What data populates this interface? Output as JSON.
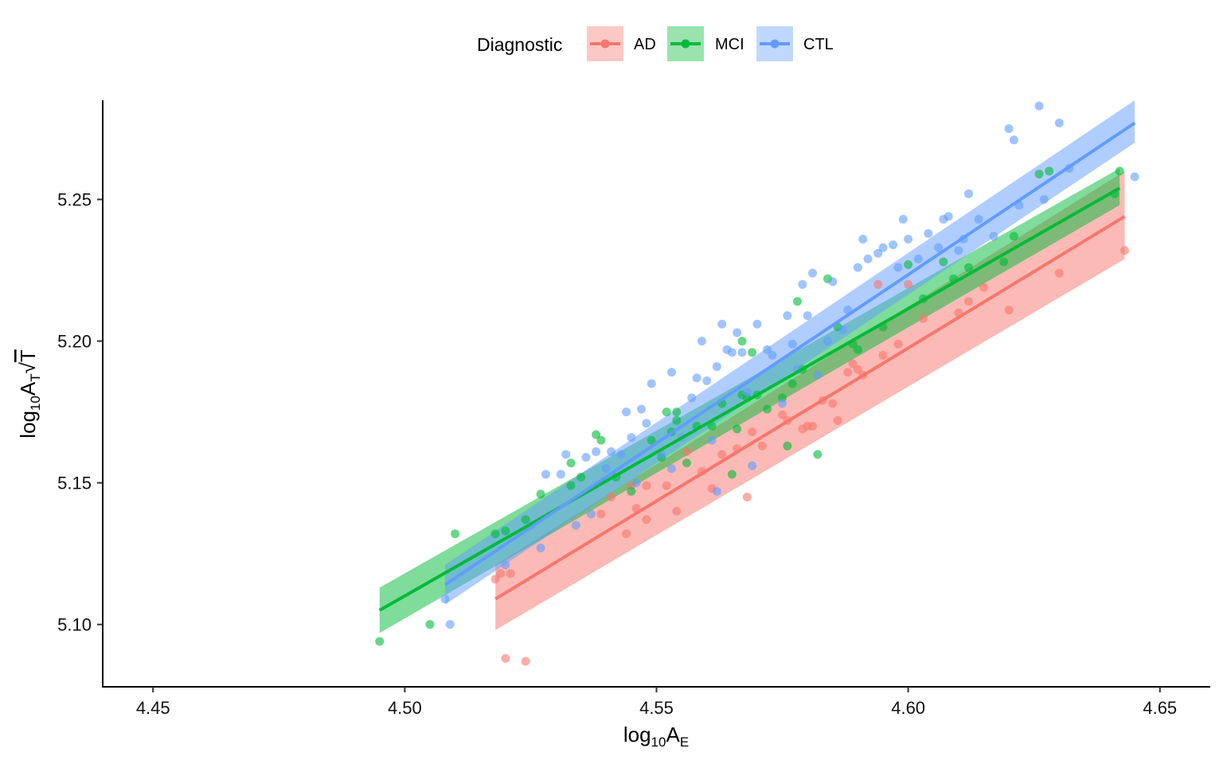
{
  "chart_data": {
    "type": "scatter",
    "title": "",
    "xlabel": {
      "base": "log",
      "sub": "10",
      "main": "A",
      "main_sub": "E"
    },
    "ylabel": {
      "base": "log",
      "sub": "10",
      "main": "A",
      "main_sub": "T",
      "root": "√",
      "root_arg": "T"
    },
    "xlim": [
      4.44,
      4.66
    ],
    "ylim": [
      5.078,
      5.285
    ],
    "x_ticks": [
      4.45,
      4.5,
      4.55,
      4.6,
      4.65
    ],
    "x_tick_labels": [
      "4.45",
      "4.50",
      "4.55",
      "4.60",
      "4.65"
    ],
    "y_ticks": [
      5.1,
      5.15,
      5.2,
      5.25
    ],
    "y_tick_labels": [
      "5.10",
      "5.15",
      "5.20",
      "5.25"
    ],
    "grid": false,
    "legend": {
      "title": "Diagnostic",
      "position": "top"
    },
    "series": [
      {
        "name": "AD",
        "color": "#F8766D",
        "fill": "#F8766D",
        "fit": {
          "x0": 4.518,
          "y0": 5.109,
          "x1": 4.643,
          "y1": 5.244
        },
        "band": {
          "lower0": 5.098,
          "upper0": 5.121,
          "lower1": 5.229,
          "upper1": 5.26
        },
        "points": [
          [
            4.518,
            5.116
          ],
          [
            4.519,
            5.118
          ],
          [
            4.521,
            5.118
          ],
          [
            4.52,
            5.088
          ],
          [
            4.524,
            5.087
          ],
          [
            4.539,
            5.139
          ],
          [
            4.541,
            5.145
          ],
          [
            4.544,
            5.132
          ],
          [
            4.545,
            5.149
          ],
          [
            4.546,
            5.141
          ],
          [
            4.548,
            5.137
          ],
          [
            4.548,
            5.149
          ],
          [
            4.552,
            5.149
          ],
          [
            4.554,
            5.14
          ],
          [
            4.556,
            5.161
          ],
          [
            4.559,
            5.154
          ],
          [
            4.561,
            5.148
          ],
          [
            4.563,
            5.16
          ],
          [
            4.566,
            5.162
          ],
          [
            4.568,
            5.145
          ],
          [
            4.569,
            5.168
          ],
          [
            4.571,
            5.163
          ],
          [
            4.575,
            5.174
          ],
          [
            4.576,
            5.172
          ],
          [
            4.579,
            5.169
          ],
          [
            4.58,
            5.17
          ],
          [
            4.581,
            5.17
          ],
          [
            4.583,
            5.179
          ],
          [
            4.585,
            5.178
          ],
          [
            4.586,
            5.172
          ],
          [
            4.588,
            5.189
          ],
          [
            4.589,
            5.192
          ],
          [
            4.59,
            5.19
          ],
          [
            4.591,
            5.188
          ],
          [
            4.594,
            5.22
          ],
          [
            4.595,
            5.195
          ],
          [
            4.598,
            5.199
          ],
          [
            4.6,
            5.22
          ],
          [
            4.603,
            5.208
          ],
          [
            4.61,
            5.21
          ],
          [
            4.612,
            5.214
          ],
          [
            4.615,
            5.219
          ],
          [
            4.62,
            5.211
          ],
          [
            4.63,
            5.224
          ],
          [
            4.643,
            5.232
          ]
        ]
      },
      {
        "name": "MCI",
        "color": "#00BA38",
        "fill": "#00BA38",
        "fit": {
          "x0": 4.495,
          "y0": 5.105,
          "x1": 4.642,
          "y1": 5.254
        },
        "band": {
          "lower0": 5.097,
          "upper0": 5.113,
          "lower1": 5.248,
          "upper1": 5.261
        },
        "points": [
          [
            4.495,
            5.094
          ],
          [
            4.505,
            5.1
          ],
          [
            4.51,
            5.132
          ],
          [
            4.518,
            5.132
          ],
          [
            4.52,
            5.133
          ],
          [
            4.524,
            5.137
          ],
          [
            4.527,
            5.146
          ],
          [
            4.533,
            5.149
          ],
          [
            4.533,
            5.157
          ],
          [
            4.535,
            5.152
          ],
          [
            4.538,
            5.167
          ],
          [
            4.539,
            5.165
          ],
          [
            4.542,
            5.152
          ],
          [
            4.545,
            5.147
          ],
          [
            4.549,
            5.165
          ],
          [
            4.551,
            5.159
          ],
          [
            4.552,
            5.175
          ],
          [
            4.553,
            5.168
          ],
          [
            4.554,
            5.172
          ],
          [
            4.554,
            5.175
          ],
          [
            4.556,
            5.157
          ],
          [
            4.558,
            5.17
          ],
          [
            4.561,
            5.17
          ],
          [
            4.563,
            5.178
          ],
          [
            4.565,
            5.153
          ],
          [
            4.566,
            5.169
          ],
          [
            4.567,
            5.2
          ],
          [
            4.567,
            5.181
          ],
          [
            4.568,
            5.18
          ],
          [
            4.569,
            5.196
          ],
          [
            4.57,
            5.181
          ],
          [
            4.572,
            5.176
          ],
          [
            4.575,
            5.18
          ],
          [
            4.576,
            5.163
          ],
          [
            4.577,
            5.185
          ],
          [
            4.578,
            5.214
          ],
          [
            4.579,
            5.19
          ],
          [
            4.582,
            5.16
          ],
          [
            4.584,
            5.222
          ],
          [
            4.586,
            5.205
          ],
          [
            4.589,
            5.199
          ],
          [
            4.59,
            5.197
          ],
          [
            4.595,
            5.205
          ],
          [
            4.6,
            5.227
          ],
          [
            4.603,
            5.215
          ],
          [
            4.607,
            5.228
          ],
          [
            4.609,
            5.222
          ],
          [
            4.612,
            5.226
          ],
          [
            4.619,
            5.228
          ],
          [
            4.621,
            5.237
          ],
          [
            4.626,
            5.259
          ],
          [
            4.628,
            5.26
          ],
          [
            4.641,
            5.252
          ],
          [
            4.642,
            5.26
          ]
        ]
      },
      {
        "name": "CTL",
        "color": "#619CFF",
        "fill": "#619CFF",
        "fit": {
          "x0": 4.508,
          "y0": 5.114,
          "x1": 4.645,
          "y1": 5.277
        },
        "band": {
          "lower0": 5.107,
          "upper0": 5.121,
          "lower1": 5.27,
          "upper1": 5.285
        },
        "points": [
          [
            4.508,
            5.109
          ],
          [
            4.509,
            5.1
          ],
          [
            4.52,
            5.121
          ],
          [
            4.525,
            5.135
          ],
          [
            4.527,
            5.127
          ],
          [
            4.528,
            5.153
          ],
          [
            4.531,
            5.153
          ],
          [
            4.532,
            5.16
          ],
          [
            4.534,
            5.135
          ],
          [
            4.536,
            5.159
          ],
          [
            4.538,
            5.161
          ],
          [
            4.537,
            5.139
          ],
          [
            4.54,
            5.155
          ],
          [
            4.541,
            5.161
          ],
          [
            4.543,
            5.16
          ],
          [
            4.544,
            5.175
          ],
          [
            4.545,
            5.166
          ],
          [
            4.546,
            5.15
          ],
          [
            4.547,
            5.176
          ],
          [
            4.548,
            5.171
          ],
          [
            4.549,
            5.185
          ],
          [
            4.551,
            5.16
          ],
          [
            4.553,
            5.155
          ],
          [
            4.553,
            5.189
          ],
          [
            4.555,
            5.166
          ],
          [
            4.557,
            5.18
          ],
          [
            4.558,
            5.187
          ],
          [
            4.559,
            5.2
          ],
          [
            4.56,
            5.186
          ],
          [
            4.561,
            5.165
          ],
          [
            4.562,
            5.191
          ],
          [
            4.562,
            5.147
          ],
          [
            4.563,
            5.206
          ],
          [
            4.564,
            5.197
          ],
          [
            4.565,
            5.196
          ],
          [
            4.566,
            5.203
          ],
          [
            4.567,
            5.196
          ],
          [
            4.568,
            5.182
          ],
          [
            4.569,
            5.156
          ],
          [
            4.57,
            5.206
          ],
          [
            4.572,
            5.197
          ],
          [
            4.573,
            5.195
          ],
          [
            4.575,
            5.178
          ],
          [
            4.576,
            5.209
          ],
          [
            4.577,
            5.199
          ],
          [
            4.578,
            5.19
          ],
          [
            4.579,
            5.22
          ],
          [
            4.58,
            5.209
          ],
          [
            4.581,
            5.224
          ],
          [
            4.582,
            5.188
          ],
          [
            4.584,
            5.2
          ],
          [
            4.585,
            5.221
          ],
          [
            4.587,
            5.204
          ],
          [
            4.588,
            5.211
          ],
          [
            4.59,
            5.226
          ],
          [
            4.591,
            5.236
          ],
          [
            4.592,
            5.229
          ],
          [
            4.594,
            5.231
          ],
          [
            4.595,
            5.233
          ],
          [
            4.597,
            5.234
          ],
          [
            4.598,
            5.226
          ],
          [
            4.599,
            5.243
          ],
          [
            4.6,
            5.236
          ],
          [
            4.602,
            5.229
          ],
          [
            4.604,
            5.238
          ],
          [
            4.606,
            5.233
          ],
          [
            4.607,
            5.243
          ],
          [
            4.608,
            5.244
          ],
          [
            4.61,
            5.232
          ],
          [
            4.611,
            5.236
          ],
          [
            4.612,
            5.252
          ],
          [
            4.614,
            5.243
          ],
          [
            4.617,
            5.237
          ],
          [
            4.62,
            5.275
          ],
          [
            4.621,
            5.271
          ],
          [
            4.622,
            5.248
          ],
          [
            4.626,
            5.283
          ],
          [
            4.627,
            5.25
          ],
          [
            4.63,
            5.277
          ],
          [
            4.632,
            5.261
          ],
          [
            4.645,
            5.258
          ]
        ]
      }
    ]
  }
}
